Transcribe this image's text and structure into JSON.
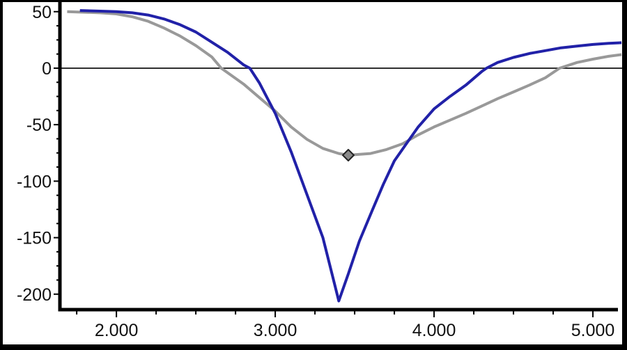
{
  "window": {
    "title": "",
    "background_color": "#ffffff",
    "border_color": "#000000"
  },
  "chart_data": {
    "type": "line",
    "title": "",
    "xlabel": "",
    "ylabel": "",
    "legend": "none",
    "grid": false,
    "axis_color": "#000000",
    "label_color": "#111111",
    "zero_line_color": "#2e2e2e",
    "x_axis": {
      "range": [
        1.653,
        5.184
      ],
      "major_ticks": [
        2.0,
        3.0,
        4.0,
        5.0
      ],
      "major_tick_labels": [
        "2.000",
        "3.000",
        "4.000",
        "5.000"
      ],
      "minor_tick_step": 0.25
    },
    "y_axis": {
      "range": [
        -213.7,
        55.4
      ],
      "major_ticks": [
        50,
        0,
        -50,
        -100,
        -150,
        -200
      ],
      "major_tick_labels": [
        "50",
        "0",
        "-50",
        "-100",
        "-150",
        "-200"
      ],
      "minor_tick_step": 12.5,
      "zero_line": true
    },
    "series": [
      {
        "name": "gray-curve",
        "color": "#999999",
        "line_width": 4,
        "points": [
          [
            1.69,
            50
          ],
          [
            1.8,
            49.5
          ],
          [
            1.9,
            49
          ],
          [
            2.0,
            48
          ],
          [
            2.1,
            45.5
          ],
          [
            2.2,
            41.5
          ],
          [
            2.3,
            35.5
          ],
          [
            2.4,
            28.5
          ],
          [
            2.5,
            20
          ],
          [
            2.6,
            10
          ],
          [
            2.66,
            0
          ],
          [
            2.8,
            -14
          ],
          [
            2.9,
            -26
          ],
          [
            3.0,
            -38
          ],
          [
            3.1,
            -52
          ],
          [
            3.2,
            -63
          ],
          [
            3.3,
            -71
          ],
          [
            3.4,
            -75.5
          ],
          [
            3.46,
            -77
          ],
          [
            3.6,
            -75.5
          ],
          [
            3.7,
            -72
          ],
          [
            3.8,
            -67
          ],
          [
            3.9,
            -59
          ],
          [
            4.0,
            -52
          ],
          [
            4.1,
            -46
          ],
          [
            4.2,
            -40
          ],
          [
            4.3,
            -33.5
          ],
          [
            4.4,
            -27
          ],
          [
            4.5,
            -21
          ],
          [
            4.6,
            -15
          ],
          [
            4.7,
            -8.5
          ],
          [
            4.79,
            0
          ],
          [
            4.9,
            5
          ],
          [
            5.0,
            8
          ],
          [
            5.1,
            10.5
          ],
          [
            5.18,
            12
          ]
        ]
      },
      {
        "name": "blue-curve",
        "color": "#2121a8",
        "line_width": 4,
        "points": [
          [
            1.77,
            51
          ],
          [
            1.9,
            50.5
          ],
          [
            2.0,
            50
          ],
          [
            2.1,
            49
          ],
          [
            2.2,
            47
          ],
          [
            2.3,
            43.5
          ],
          [
            2.4,
            38.5
          ],
          [
            2.5,
            32
          ],
          [
            2.6,
            23
          ],
          [
            2.7,
            14
          ],
          [
            2.8,
            3
          ],
          [
            2.84,
            0
          ],
          [
            2.9,
            -13
          ],
          [
            3.0,
            -40
          ],
          [
            3.1,
            -74
          ],
          [
            3.2,
            -112
          ],
          [
            3.3,
            -150
          ],
          [
            3.35,
            -178
          ],
          [
            3.4,
            -206
          ],
          [
            3.46,
            -182
          ],
          [
            3.53,
            -153
          ],
          [
            3.61,
            -126
          ],
          [
            3.68,
            -103
          ],
          [
            3.75,
            -82
          ],
          [
            3.83,
            -66
          ],
          [
            3.9,
            -52
          ],
          [
            4.0,
            -36
          ],
          [
            4.1,
            -25
          ],
          [
            4.2,
            -15
          ],
          [
            4.3,
            -3
          ],
          [
            4.33,
            0
          ],
          [
            4.4,
            5
          ],
          [
            4.5,
            9.5
          ],
          [
            4.6,
            13
          ],
          [
            4.7,
            15.5
          ],
          [
            4.8,
            18
          ],
          [
            4.9,
            19.5
          ],
          [
            5.0,
            21
          ],
          [
            5.1,
            22
          ],
          [
            5.18,
            22.5
          ]
        ]
      }
    ],
    "marker": {
      "shape": "diamond",
      "on_series": "gray-curve",
      "x": 3.46,
      "y": -77,
      "fill": "#8a8a8a",
      "stroke": "#222222"
    }
  }
}
